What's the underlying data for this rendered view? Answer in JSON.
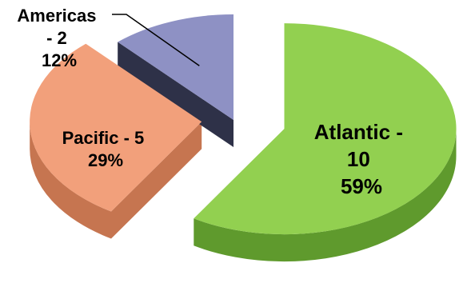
{
  "chart_data": {
    "type": "pie",
    "style": "3d-exploded",
    "legend": "none",
    "slices": [
      {
        "category": "Atlantic",
        "value": 10,
        "percent": "59%",
        "color": "#92d050",
        "side_color": "#5f9a2d",
        "label_lines": [
          "Atlantic -",
          "10",
          "59%"
        ]
      },
      {
        "category": "Pacific",
        "value": 5,
        "percent": "29%",
        "color": "#f2a07b",
        "side_color": "#c67550",
        "label_lines": [
          "Pacific - 5",
          "29%"
        ]
      },
      {
        "category": "Americas",
        "value": 2,
        "percent": "12%",
        "color": "#8e91c4",
        "side_color": "#2e3148",
        "label_lines": [
          "Americas",
          "- 2",
          "12%"
        ]
      }
    ]
  }
}
